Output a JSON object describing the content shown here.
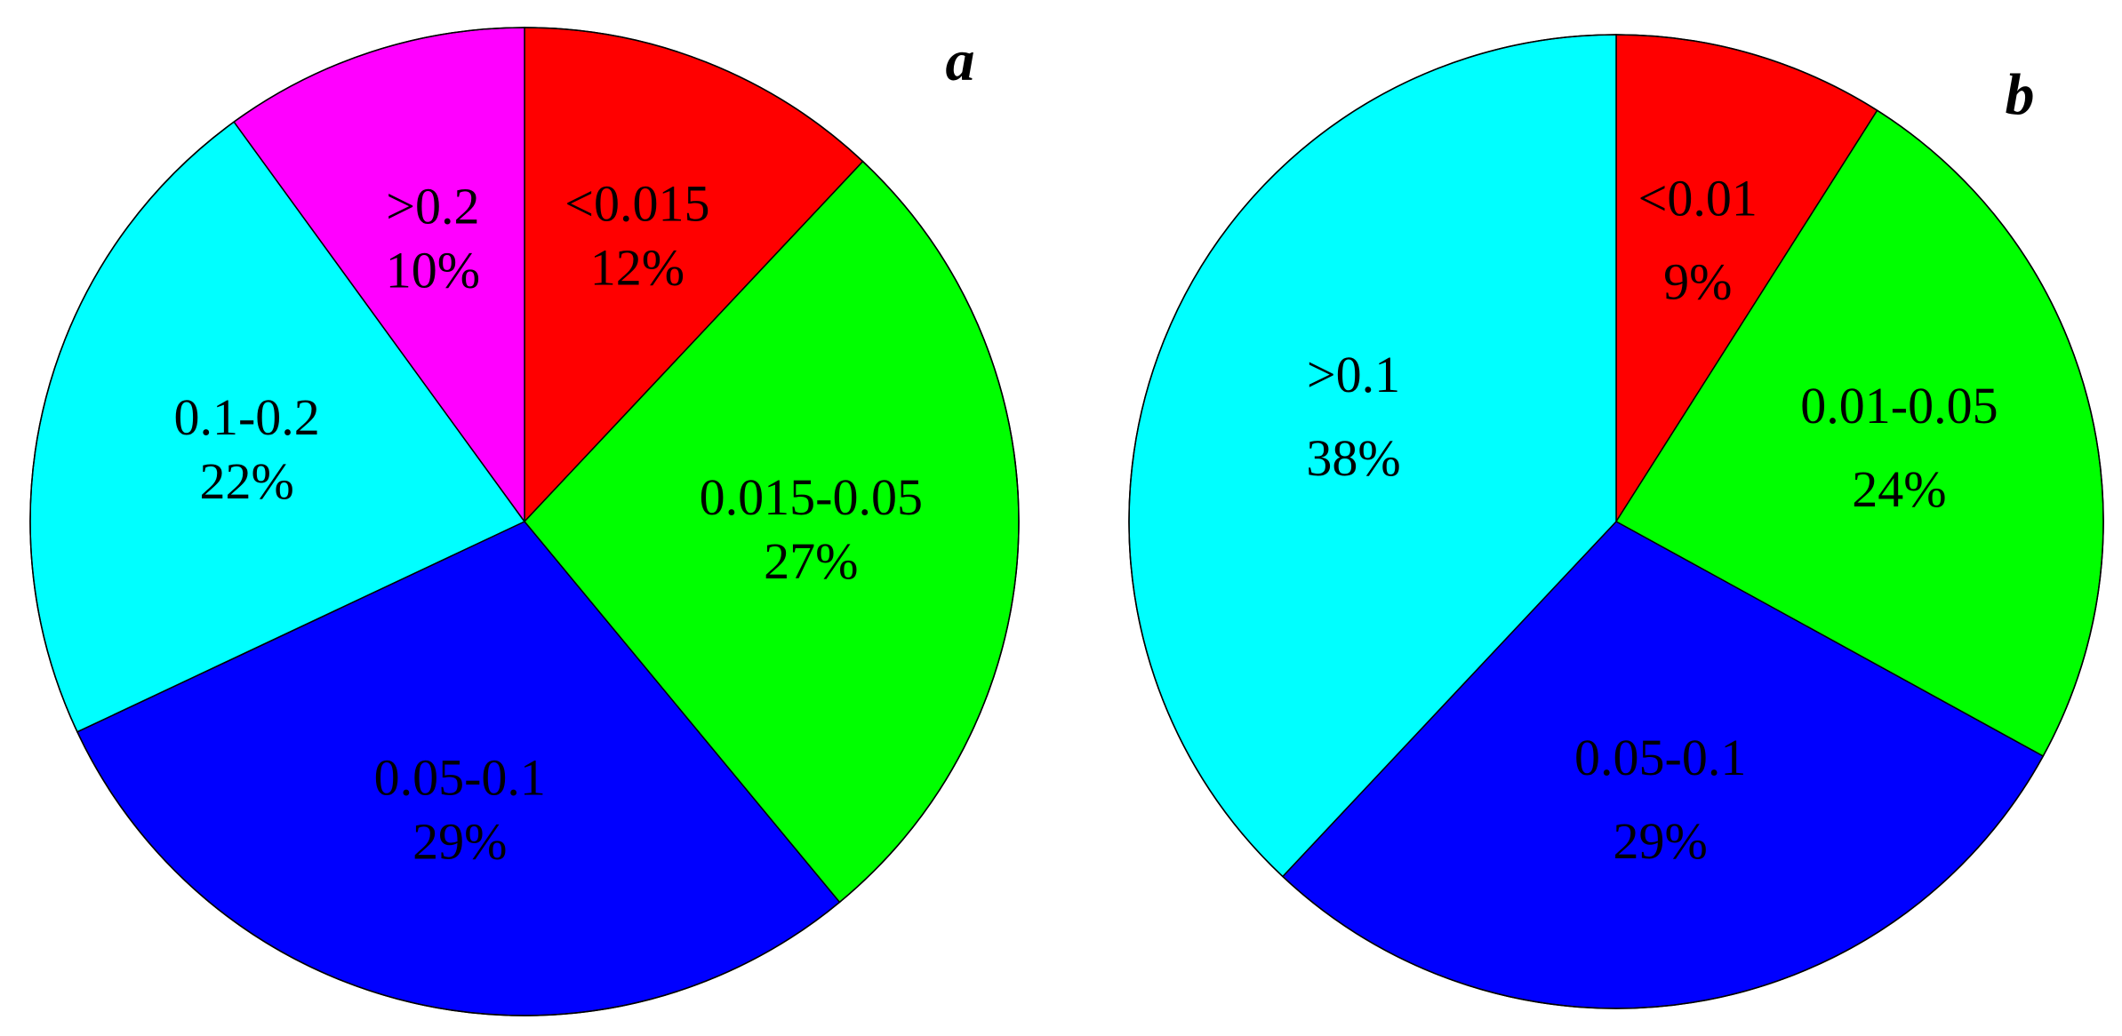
{
  "chart_data": [
    {
      "type": "pie",
      "panel_label": "a",
      "slices": [
        {
          "category": "<0.015",
          "value": 12,
          "value_label": "12%",
          "color": "#ff0000"
        },
        {
          "category": "0.015-0.05",
          "value": 27,
          "value_label": "27%",
          "color": "#00ff00"
        },
        {
          "category": "0.05-0.1",
          "value": 29,
          "value_label": "29%",
          "color": "#0000ff"
        },
        {
          "category": "0.1-0.2",
          "value": 22,
          "value_label": "22%",
          "color": "#00ffff"
        },
        {
          "category": ">0.2",
          "value": 10,
          "value_label": "10%",
          "color": "#ff00ff"
        }
      ]
    },
    {
      "type": "pie",
      "panel_label": "b",
      "slices": [
        {
          "category": "<0.01",
          "value": 9,
          "value_label": "9%",
          "color": "#ff0000"
        },
        {
          "category": "0.01-0.05",
          "value": 24,
          "value_label": "24%",
          "color": "#00ff00"
        },
        {
          "category": "0.05-0.1",
          "value": 29,
          "value_label": "29%",
          "color": "#0000ff"
        },
        {
          "category": ">0.1",
          "value": 38,
          "value_label": "38%",
          "color": "#00ffff"
        }
      ]
    }
  ]
}
